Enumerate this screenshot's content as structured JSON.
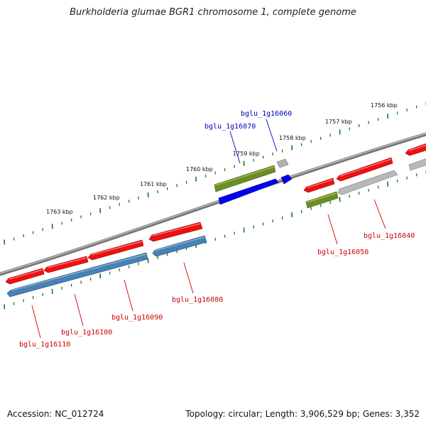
{
  "title": "Burkholderia glumae BGR1 chromosome 1, complete genome",
  "footer": {
    "accession": "Accession: NC_012724",
    "summary": "Topology: circular; Length: 3,906,529 bp; Genes: 3,352"
  },
  "colors": {
    "forward_gene": "#ee1111",
    "reverse_gene": "#4682b4",
    "green_feature": "#6b8e23",
    "blue_feature": "#0000ee",
    "gray_feature": "#b0b0b0",
    "ticks": "#1a7a1a",
    "backbone": "#7a7a7a",
    "label_red": "#cc0000",
    "label_blue": "#0000bb"
  },
  "scale_labels": [
    "1763 kbp",
    "1762 kbp",
    "1761 kbp",
    "1760 kbp",
    "1759 kbp",
    "1758 kbp",
    "1757 kbp",
    "1756 kbp"
  ],
  "gene_labels": [
    {
      "id": "bglu_1g16110",
      "color": "red"
    },
    {
      "id": "bglu_1g16100",
      "color": "red"
    },
    {
      "id": "bglu_1g16090",
      "color": "red"
    },
    {
      "id": "bglu_1g16080",
      "color": "red"
    },
    {
      "id": "bglu_1g16070",
      "color": "blue"
    },
    {
      "id": "bglu_1g16060",
      "color": "blue"
    },
    {
      "id": "bglu_1g16050",
      "color": "red"
    },
    {
      "id": "bglu_1g16040",
      "color": "red"
    }
  ]
}
